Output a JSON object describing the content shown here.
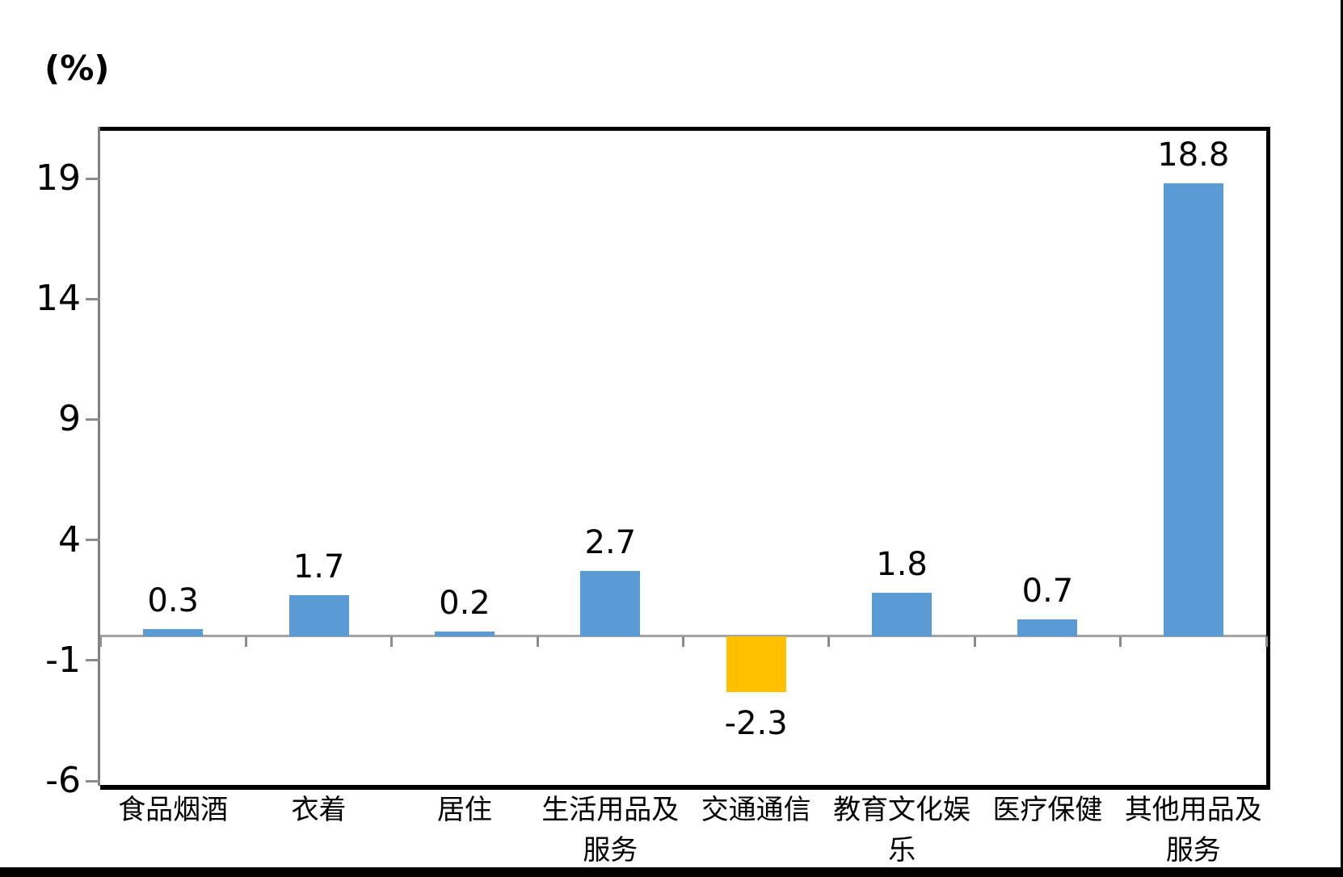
{
  "unit_label": "(%)",
  "colors": {
    "bar_default": "#5B9BD5",
    "bar_highlight": "#FFC000",
    "axis_gray": "#7F7F7F",
    "tick_gray": "#8C8C8C",
    "zero_line_gray": "#A3A3A3",
    "border_black": "#000000"
  },
  "chart_data": {
    "type": "bar",
    "title": "",
    "xlabel": "",
    "ylabel": "(%)",
    "categories": [
      "食品烟酒",
      "衣着",
      "居住",
      "生活用品及服务",
      "交通通信",
      "教育文化娱乐",
      "医疗保健",
      "其他用品及服务"
    ],
    "category_lines": [
      [
        "食品烟酒"
      ],
      [
        "衣着"
      ],
      [
        "居住"
      ],
      [
        "生活用品及",
        "服务"
      ],
      [
        "交通通信"
      ],
      [
        "教育文化娱",
        "乐"
      ],
      [
        "医疗保健"
      ],
      [
        "其他用品及",
        "服务"
      ]
    ],
    "values": [
      0.3,
      1.7,
      0.2,
      2.7,
      -2.3,
      1.8,
      0.7,
      18.8
    ],
    "data_labels": [
      "0.3",
      "1.7",
      "0.2",
      "2.7",
      "-2.3",
      "1.8",
      "0.7",
      "18.8"
    ],
    "bar_colors": [
      "#5B9BD5",
      "#5B9BD5",
      "#5B9BD5",
      "#5B9BD5",
      "#FFC000",
      "#5B9BD5",
      "#5B9BD5",
      "#5B9BD5"
    ],
    "yticks": [
      19,
      14,
      9,
      4,
      -1,
      -6
    ],
    "ylim": [
      -6,
      21.15
    ],
    "grid": "off",
    "legend": "none",
    "data_labels_shown": true
  }
}
